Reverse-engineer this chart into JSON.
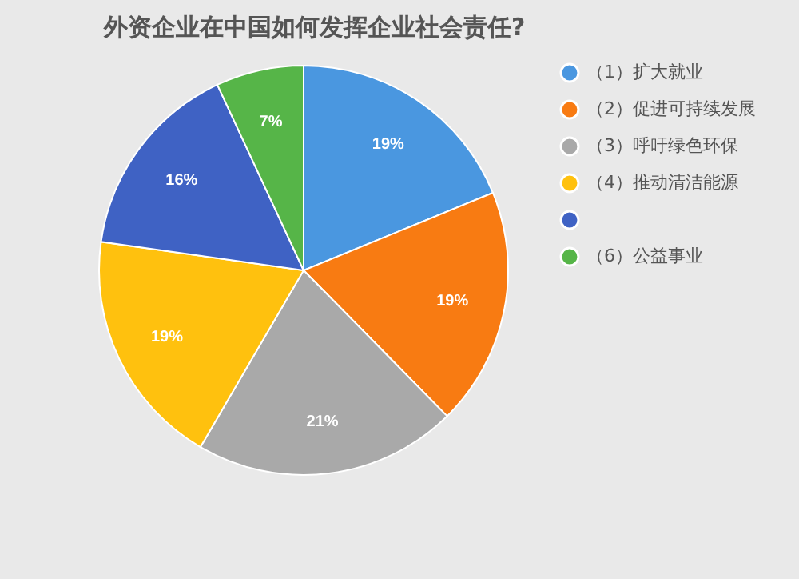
{
  "chart_data": {
    "type": "pie",
    "title": "外资企业在中国如何发挥企业社会责任?",
    "categories": [
      "（1）扩大就业",
      "（2）促进可持续发展",
      "（3）呼吁绿色环保",
      "（4）推动清洁能源",
      null,
      "（6）公益事业"
    ],
    "values": [
      19,
      19,
      21,
      19,
      16,
      7
    ],
    "value_labels": [
      "19%",
      "19%",
      "21%",
      "19%",
      "16%",
      "7%"
    ],
    "colors": [
      "#4a97e0",
      "#f87b12",
      "#a9a9a9",
      "#ffc10e",
      "#3f62c4",
      "#56b548"
    ],
    "legend": "right"
  }
}
